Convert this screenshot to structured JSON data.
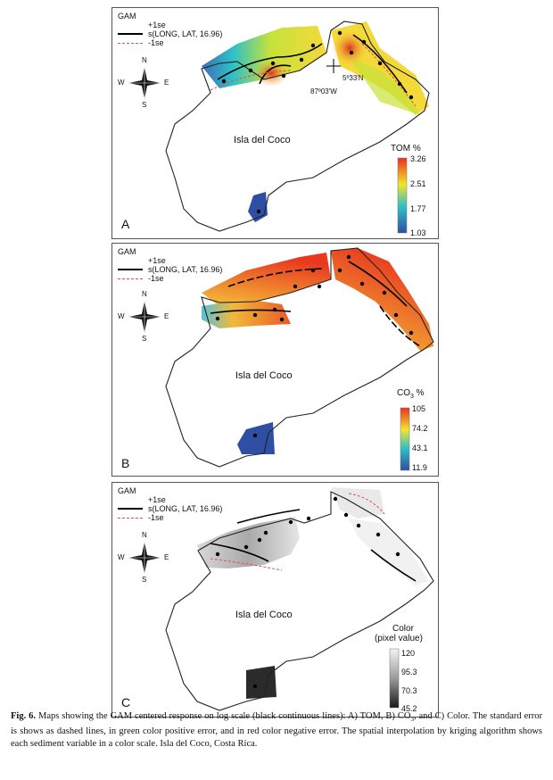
{
  "legend": {
    "title": "GAM",
    "plus_se": "+1se",
    "fit": "s(LONG, LAT, 16.96)",
    "minus_se": "-1se"
  },
  "compass": {
    "n": "N",
    "s": "S",
    "e": "E",
    "w": "W"
  },
  "island": "Isla del Coco",
  "coord": {
    "lat": "5º33'N",
    "long": "87º03'W"
  },
  "panels": [
    {
      "letter": "A",
      "scale_title": "TOM %",
      "scale_labels": [
        "3.26",
        "2.51",
        "1.77",
        "1.03"
      ],
      "contour_labels": [
        "0.2",
        "0",
        "-0.2",
        "0.1"
      ]
    },
    {
      "letter": "B",
      "scale_title_main": "CO",
      "scale_title_sub": "3",
      "scale_title_unit": " %",
      "scale_labels": [
        "105",
        "74.2",
        "43.1",
        "11.9"
      ],
      "contour_labels": [
        "0.2",
        "0",
        "-0.2",
        "0",
        "0"
      ]
    },
    {
      "letter": "C",
      "scale_title": "Color",
      "scale_subtitle": "(pixel value)",
      "scale_labels": [
        "120",
        "95.3",
        "70.3",
        "45.2"
      ],
      "contour_labels": [
        "0.1",
        "-0.1",
        "0.1",
        "-0.1",
        "0.1"
      ]
    }
  ],
  "caption": {
    "label": "Fig. 6.",
    "text_part1": " Maps showing the GAM centered response on log scale (black continuous lines): A) TOM, B) CO",
    "text_sub": "3",
    "text_part2": ", and C) Color. The standard error is shows as dashed lines, in green color positive error, and in red color negative error. The spatial interpolation by kriging algorithm shows each sediment variable in a color scale. Isla del Coco, Costa Rica."
  },
  "colors": {
    "tom_high": "#e8311f",
    "tom_mid": "#f2e52a",
    "tom_low": "#2e4fa3",
    "co3_high": "#e8311f",
    "co3_mid": "#f3e52c",
    "co3_low": "#2e4fa3",
    "color_high": "#f2f2f2",
    "color_low": "#1a1a1a",
    "minus_se": "#d9534f",
    "fit": "#000000"
  }
}
